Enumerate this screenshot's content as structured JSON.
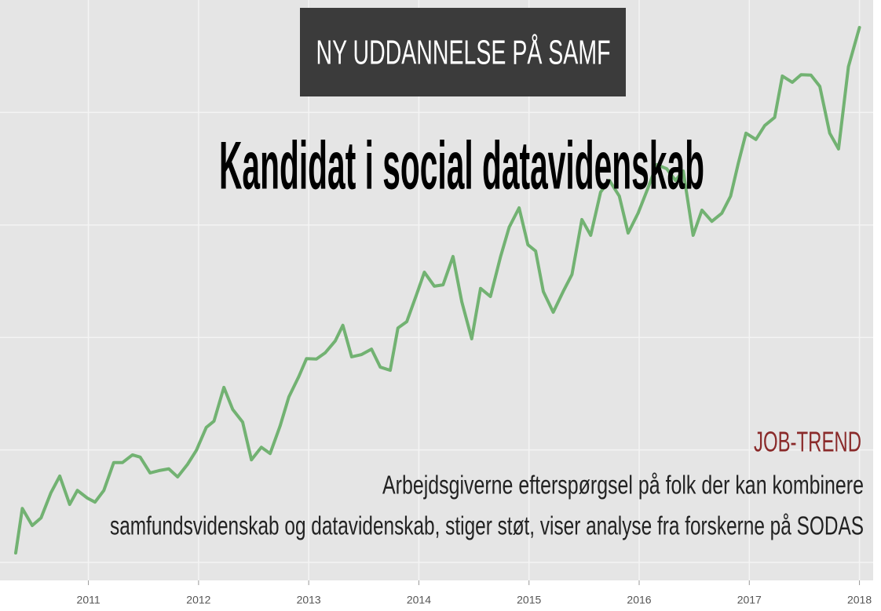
{
  "chart_data": {
    "type": "line",
    "banner": "NY UDDANNELSE PÅ SAMF",
    "title": "Kandidat i social datavidenskab",
    "annotation_heading": "JOB-TREND",
    "annotation_lines": [
      "Arbejdsgiverne efterspørgsel på folk der kan kombinere",
      "samfundsvidenskab og datavidenskab, stiger støt, viser analyse fra forskerne på SODAS"
    ],
    "color": "#72b272",
    "x": [
      2010.34,
      2010.4,
      2010.49,
      2010.57,
      2010.66,
      2010.74,
      2010.83,
      2010.9,
      2010.99,
      2011.06,
      2011.14,
      2011.23,
      2011.31,
      2011.4,
      2011.47,
      2011.56,
      2011.64,
      2011.73,
      2011.81,
      2011.9,
      2011.98,
      2012.07,
      2012.14,
      2012.23,
      2012.31,
      2012.4,
      2012.48,
      2012.57,
      2012.65,
      2012.74,
      2012.82,
      2012.91,
      2012.98,
      2013.07,
      2013.15,
      2013.24,
      2013.31,
      2013.39,
      2013.48,
      2013.57,
      2013.65,
      2013.74,
      2013.81,
      2013.89,
      2013.98,
      2014.05,
      2014.14,
      2014.22,
      2014.31,
      2014.39,
      2014.48,
      2014.56,
      2014.65,
      2014.74,
      2014.82,
      2014.91,
      2014.99,
      2015.06,
      2015.13,
      2015.22,
      2015.31,
      2015.39,
      2015.48,
      2015.56,
      2015.65,
      2015.73,
      2015.82,
      2015.9,
      2015.99,
      2016.08,
      2016.16,
      2016.25,
      2016.33,
      2016.4,
      2016.49,
      2016.57,
      2016.66,
      2016.75,
      2016.83,
      2016.9,
      2016.97,
      2017.06,
      2017.14,
      2017.23,
      2017.3,
      2017.39,
      2017.47,
      2017.56,
      2017.64,
      2017.73,
      2017.81,
      2017.9,
      2018.0
    ],
    "values": [
      2.1,
      12.0,
      8.2,
      9.9,
      15.5,
      19.2,
      12.9,
      16.0,
      14.3,
      13.4,
      16.0,
      22.2,
      22.2,
      23.9,
      23.4,
      19.9,
      20.4,
      20.8,
      19.0,
      21.8,
      24.9,
      30.0,
      31.4,
      38.9,
      34.0,
      31.2,
      22.8,
      25.6,
      24.2,
      30.3,
      36.8,
      41.3,
      45.3,
      45.2,
      46.6,
      49.2,
      52.7,
      45.7,
      46.2,
      47.4,
      43.4,
      42.7,
      52.1,
      53.5,
      59.6,
      64.5,
      61.4,
      61.7,
      68.0,
      57.9,
      49.7,
      60.9,
      59.1,
      67.8,
      74.5,
      78.8,
      70.6,
      69.2,
      60.2,
      55.6,
      60.2,
      64.0,
      76.2,
      72.7,
      82.3,
      84.9,
      81.4,
      73.2,
      77.6,
      83.2,
      88.4,
      87.5,
      84.9,
      87.0,
      72.7,
      78.3,
      75.8,
      77.6,
      81.4,
      88.7,
      95.4,
      94.0,
      97.1,
      98.9,
      108.1,
      106.7,
      108.4,
      108.3,
      105.8,
      95.4,
      91.9,
      110.2,
      118.9
    ],
    "xlim": [
      2010.34,
      2018.11
    ],
    "xticks": [
      2011,
      2012,
      2013,
      2014,
      2015,
      2016,
      2017,
      2018
    ],
    "ylim": [
      -4,
      125
    ],
    "yticks": [
      0,
      25,
      50,
      75,
      100
    ],
    "grid": true
  }
}
